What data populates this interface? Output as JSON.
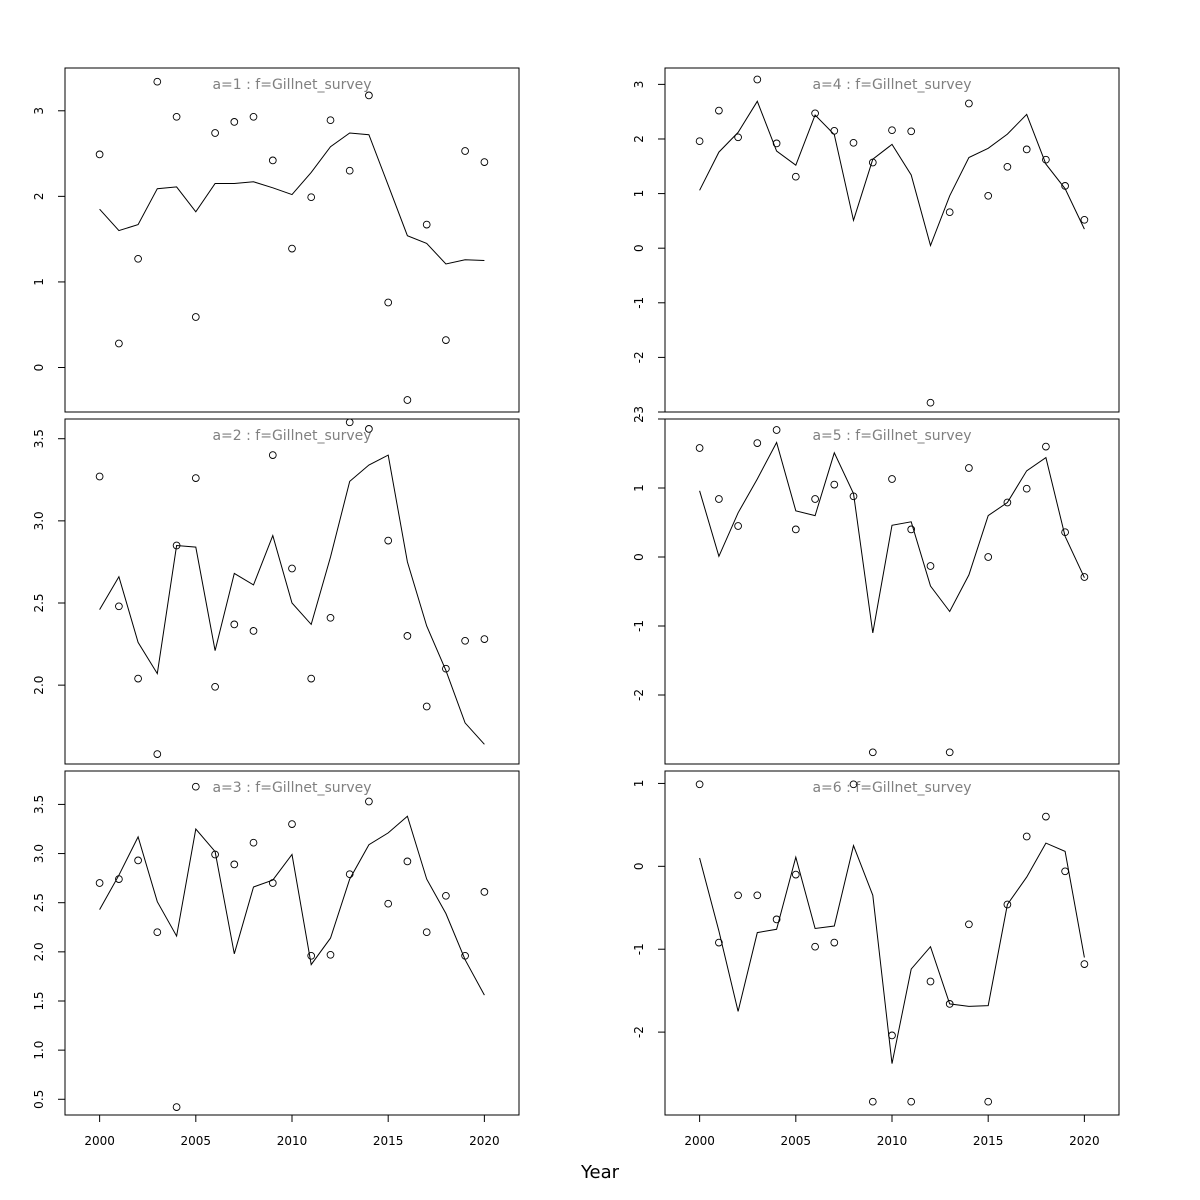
{
  "figure": {
    "xlabel": "Year"
  },
  "style": {
    "point_color": "#000000",
    "line_color": "#000000",
    "title_color": "#808080",
    "frame_color": "#000000"
  },
  "chart_data": [
    {
      "type": "scatter",
      "title": "a=1  :  f=Gillnet_survey",
      "xlim": [
        1998.2,
        2021.8
      ],
      "ylim": [
        -0.52,
        3.5
      ],
      "x_ticks": [],
      "y_ticks": [
        0,
        1,
        2,
        3
      ],
      "series": [
        {
          "kind": "points",
          "x": [
            2000,
            2001,
            2002,
            2003,
            2004,
            2005,
            2006,
            2007,
            2008,
            2009,
            2010,
            2011,
            2012,
            2013,
            2014,
            2015,
            2016,
            2017,
            2018,
            2019,
            2020
          ],
          "y": [
            2.49,
            0.28,
            1.27,
            3.34,
            2.93,
            0.59,
            2.74,
            2.87,
            2.93,
            2.42,
            1.39,
            1.99,
            2.89,
            2.3,
            3.18,
            0.76,
            -0.38,
            1.67,
            0.32,
            2.53,
            2.4
          ]
        },
        {
          "kind": "line",
          "x": [
            2000,
            2001,
            2002,
            2003,
            2004,
            2005,
            2006,
            2007,
            2008,
            2009,
            2010,
            2011,
            2012,
            2013,
            2014,
            2015,
            2016,
            2017,
            2018,
            2019,
            2020
          ],
          "y": [
            1.85,
            1.6,
            1.67,
            2.09,
            2.11,
            1.82,
            2.15,
            2.15,
            2.17,
            2.1,
            2.02,
            2.28,
            2.58,
            2.74,
            2.72,
            2.13,
            1.54,
            1.45,
            1.21,
            1.26,
            1.25
          ]
        }
      ]
    },
    {
      "type": "scatter",
      "title": "a=4  :  f=Gillnet_survey",
      "xlim": [
        1998.2,
        2021.8
      ],
      "ylim": [
        -3.0,
        3.3
      ],
      "x_ticks": [],
      "y_ticks": [
        -3,
        -2,
        -1,
        0,
        1,
        2,
        3
      ],
      "series": [
        {
          "kind": "points",
          "x": [
            2000,
            2001,
            2002,
            2003,
            2004,
            2005,
            2006,
            2007,
            2008,
            2009,
            2010,
            2011,
            2012,
            2013,
            2014,
            2015,
            2016,
            2017,
            2018,
            2019,
            2020
          ],
          "y": [
            1.96,
            2.52,
            2.03,
            3.09,
            1.92,
            1.31,
            2.47,
            2.15,
            1.93,
            1.57,
            2.16,
            2.14,
            -2.83,
            0.66,
            2.65,
            0.96,
            1.49,
            1.81,
            1.62,
            1.14,
            0.52
          ]
        },
        {
          "kind": "line",
          "x": [
            2000,
            2001,
            2002,
            2003,
            2004,
            2005,
            2006,
            2007,
            2008,
            2009,
            2010,
            2011,
            2012,
            2013,
            2014,
            2015,
            2016,
            2017,
            2018,
            2019,
            2020
          ],
          "y": [
            1.06,
            1.76,
            2.12,
            2.69,
            1.78,
            1.52,
            2.44,
            2.08,
            0.51,
            1.63,
            1.9,
            1.34,
            0.05,
            0.96,
            1.66,
            1.83,
            2.09,
            2.45,
            1.54,
            1.09,
            0.35
          ]
        }
      ]
    },
    {
      "type": "scatter",
      "title": "a=2  :  f=Gillnet_survey",
      "xlim": [
        1998.2,
        2021.8
      ],
      "ylim": [
        1.52,
        3.62
      ],
      "x_ticks": [],
      "y_ticks": [
        2.0,
        2.5,
        3.0,
        3.5
      ],
      "y_tick_labels": [
        "2.0",
        "2.5",
        "3.0",
        "3.5"
      ],
      "series": [
        {
          "kind": "points",
          "x": [
            2000,
            2001,
            2002,
            2003,
            2004,
            2005,
            2006,
            2007,
            2008,
            2009,
            2010,
            2011,
            2012,
            2013,
            2014,
            2015,
            2016,
            2017,
            2018,
            2019,
            2020
          ],
          "y": [
            3.27,
            2.48,
            2.04,
            1.58,
            2.85,
            3.26,
            1.99,
            2.37,
            2.33,
            3.4,
            2.71,
            2.04,
            2.41,
            3.6,
            3.56,
            2.88,
            2.3,
            1.87,
            2.1,
            2.27,
            2.28
          ]
        },
        {
          "kind": "line",
          "x": [
            2000,
            2001,
            2002,
            2003,
            2004,
            2005,
            2006,
            2007,
            2008,
            2009,
            2010,
            2011,
            2012,
            2013,
            2014,
            2015,
            2016,
            2017,
            2018,
            2019,
            2020
          ],
          "y": [
            2.46,
            2.66,
            2.26,
            2.07,
            2.85,
            2.84,
            2.21,
            2.68,
            2.61,
            2.91,
            2.5,
            2.37,
            2.78,
            3.24,
            3.34,
            3.4,
            2.75,
            2.36,
            2.09,
            1.77,
            1.64
          ]
        }
      ]
    },
    {
      "type": "scatter",
      "title": "a=5  :  f=Gillnet_survey",
      "xlim": [
        1998.2,
        2021.8
      ],
      "ylim": [
        -3.0,
        2.0
      ],
      "x_ticks": [],
      "y_ticks": [
        -2,
        -1,
        0,
        1,
        2
      ],
      "series": [
        {
          "kind": "points",
          "x": [
            2000,
            2001,
            2002,
            2003,
            2004,
            2005,
            2006,
            2007,
            2008,
            2009,
            2010,
            2011,
            2012,
            2013,
            2014,
            2015,
            2016,
            2017,
            2018,
            2019,
            2020
          ],
          "y": [
            1.58,
            0.84,
            0.45,
            1.65,
            1.84,
            0.4,
            0.84,
            1.05,
            0.88,
            -2.83,
            1.13,
            0.4,
            -0.13,
            -2.83,
            1.29,
            0.0,
            0.79,
            0.99,
            1.6,
            0.36,
            -0.29
          ]
        },
        {
          "kind": "line",
          "x": [
            2000,
            2001,
            2002,
            2003,
            2004,
            2005,
            2006,
            2007,
            2008,
            2009,
            2010,
            2011,
            2012,
            2013,
            2014,
            2015,
            2016,
            2017,
            2018,
            2019,
            2020
          ],
          "y": [
            0.96,
            0.01,
            0.64,
            1.13,
            1.66,
            0.67,
            0.6,
            1.51,
            0.92,
            -1.1,
            0.46,
            0.51,
            -0.42,
            -0.79,
            -0.26,
            0.6,
            0.79,
            1.25,
            1.44,
            0.3,
            -0.3
          ]
        }
      ]
    },
    {
      "type": "scatter",
      "title": "a=3  :  f=Gillnet_survey",
      "xlim": [
        1998.2,
        2021.8
      ],
      "ylim": [
        0.34,
        3.84
      ],
      "x_ticks": [
        2000,
        2005,
        2010,
        2015,
        2020
      ],
      "y_ticks": [
        0.5,
        1.0,
        1.5,
        2.0,
        2.5,
        3.0,
        3.5
      ],
      "y_tick_labels": [
        "0.5",
        "1.0",
        "1.5",
        "2.0",
        "2.5",
        "3.0",
        "3.5"
      ],
      "series": [
        {
          "kind": "points",
          "x": [
            2000,
            2001,
            2002,
            2003,
            2004,
            2005,
            2006,
            2007,
            2008,
            2009,
            2010,
            2011,
            2012,
            2013,
            2014,
            2015,
            2016,
            2017,
            2018,
            2019,
            2020
          ],
          "y": [
            2.7,
            2.74,
            2.93,
            2.2,
            0.42,
            3.68,
            2.99,
            2.89,
            3.11,
            2.7,
            3.3,
            1.96,
            1.97,
            2.79,
            3.53,
            2.49,
            2.92,
            2.2,
            2.57,
            1.96,
            2.61
          ]
        },
        {
          "kind": "line",
          "x": [
            2000,
            2001,
            2002,
            2003,
            2004,
            2005,
            2006,
            2007,
            2008,
            2009,
            2010,
            2011,
            2012,
            2013,
            2014,
            2015,
            2016,
            2017,
            2018,
            2019,
            2020
          ],
          "y": [
            2.43,
            2.78,
            3.17,
            2.51,
            2.16,
            3.25,
            3.02,
            1.98,
            2.66,
            2.73,
            2.99,
            1.87,
            2.14,
            2.74,
            3.09,
            3.21,
            3.38,
            2.74,
            2.39,
            1.92,
            1.56
          ]
        }
      ]
    },
    {
      "type": "scatter",
      "title": "a=6  :  f=Gillnet_survey",
      "xlim": [
        1998.2,
        2021.8
      ],
      "ylim": [
        -3.0,
        1.15
      ],
      "x_ticks": [
        2000,
        2005,
        2010,
        2015,
        2020
      ],
      "y_ticks": [
        -2,
        -1,
        0,
        1
      ],
      "series": [
        {
          "kind": "points",
          "x": [
            2000,
            2001,
            2002,
            2003,
            2004,
            2005,
            2006,
            2007,
            2008,
            2009,
            2010,
            2011,
            2012,
            2013,
            2014,
            2015,
            2016,
            2017,
            2018,
            2019,
            2020
          ],
          "y": [
            0.99,
            -0.92,
            -0.35,
            -0.35,
            -0.64,
            -0.1,
            -0.97,
            -0.92,
            0.99,
            -2.84,
            -2.04,
            -2.84,
            -1.39,
            -1.66,
            -0.7,
            -2.84,
            -0.46,
            0.36,
            0.6,
            -0.06,
            -1.18
          ]
        },
        {
          "kind": "line",
          "x": [
            2000,
            2001,
            2002,
            2003,
            2004,
            2005,
            2006,
            2007,
            2008,
            2009,
            2010,
            2011,
            2012,
            2013,
            2014,
            2015,
            2016,
            2017,
            2018,
            2019,
            2020
          ],
          "y": [
            0.1,
            -0.78,
            -1.75,
            -0.8,
            -0.76,
            0.11,
            -0.75,
            -0.72,
            0.25,
            -0.35,
            -2.38,
            -1.24,
            -0.97,
            -1.66,
            -1.69,
            -1.68,
            -0.46,
            -0.13,
            0.28,
            0.18,
            -1.1
          ]
        }
      ]
    }
  ]
}
